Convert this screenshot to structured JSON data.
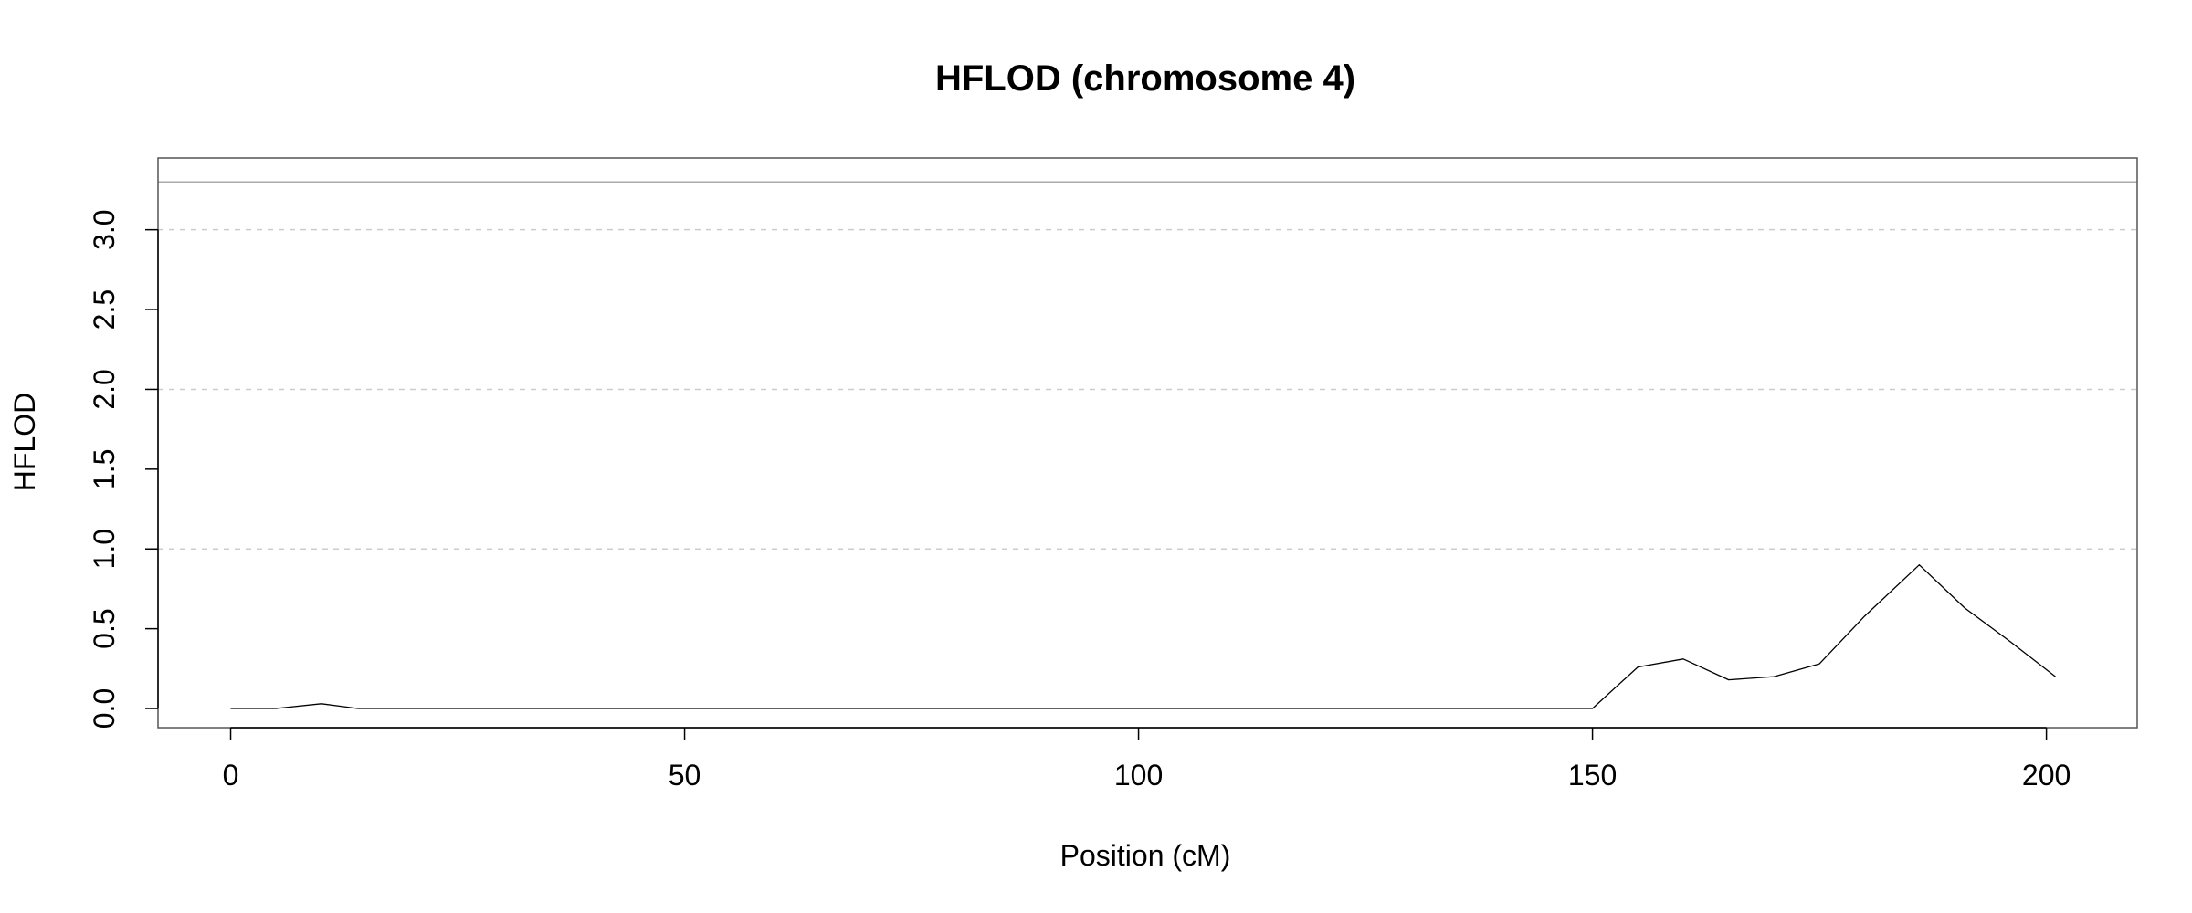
{
  "chart_data": {
    "type": "line",
    "title": "HFLOD (chromosome 4)",
    "xlabel": "Position (cM)",
    "ylabel": "HFLOD",
    "xlim": [
      -8,
      210
    ],
    "ylim": [
      -0.12,
      3.45
    ],
    "x_ticks": [
      0,
      50,
      100,
      150,
      200
    ],
    "x_tick_labels": [
      "0",
      "50",
      "100",
      "150",
      "200"
    ],
    "y_ticks": [
      0.0,
      0.5,
      1.0,
      1.5,
      2.0,
      2.5,
      3.0
    ],
    "y_tick_labels": [
      "0.0",
      "0.5",
      "1.0",
      "1.5",
      "2.0",
      "2.5",
      "3.0"
    ],
    "gridlines_y": [
      1.0,
      2.0,
      3.0
    ],
    "threshold_line": 3.3,
    "grid": true,
    "legend": "none",
    "colors": {
      "line": "#000000",
      "grid": "#cccccc",
      "threshold": "#aaaaaa",
      "frame": "#555555"
    },
    "series": [
      {
        "x": [
          0,
          5,
          10,
          14,
          20,
          30,
          40,
          50,
          60,
          70,
          80,
          90,
          100,
          110,
          120,
          130,
          140,
          150,
          155,
          160,
          165,
          170,
          175,
          180,
          186,
          191,
          196,
          201
        ],
        "y": [
          0.0,
          0.0,
          0.03,
          0.0,
          0.0,
          0.0,
          0.0,
          0.0,
          0.0,
          0.0,
          0.0,
          0.0,
          0.0,
          0.0,
          0.0,
          0.0,
          0.0,
          0.0,
          0.26,
          0.31,
          0.18,
          0.2,
          0.28,
          0.58,
          0.9,
          0.63,
          0.42,
          0.2
        ]
      }
    ]
  }
}
